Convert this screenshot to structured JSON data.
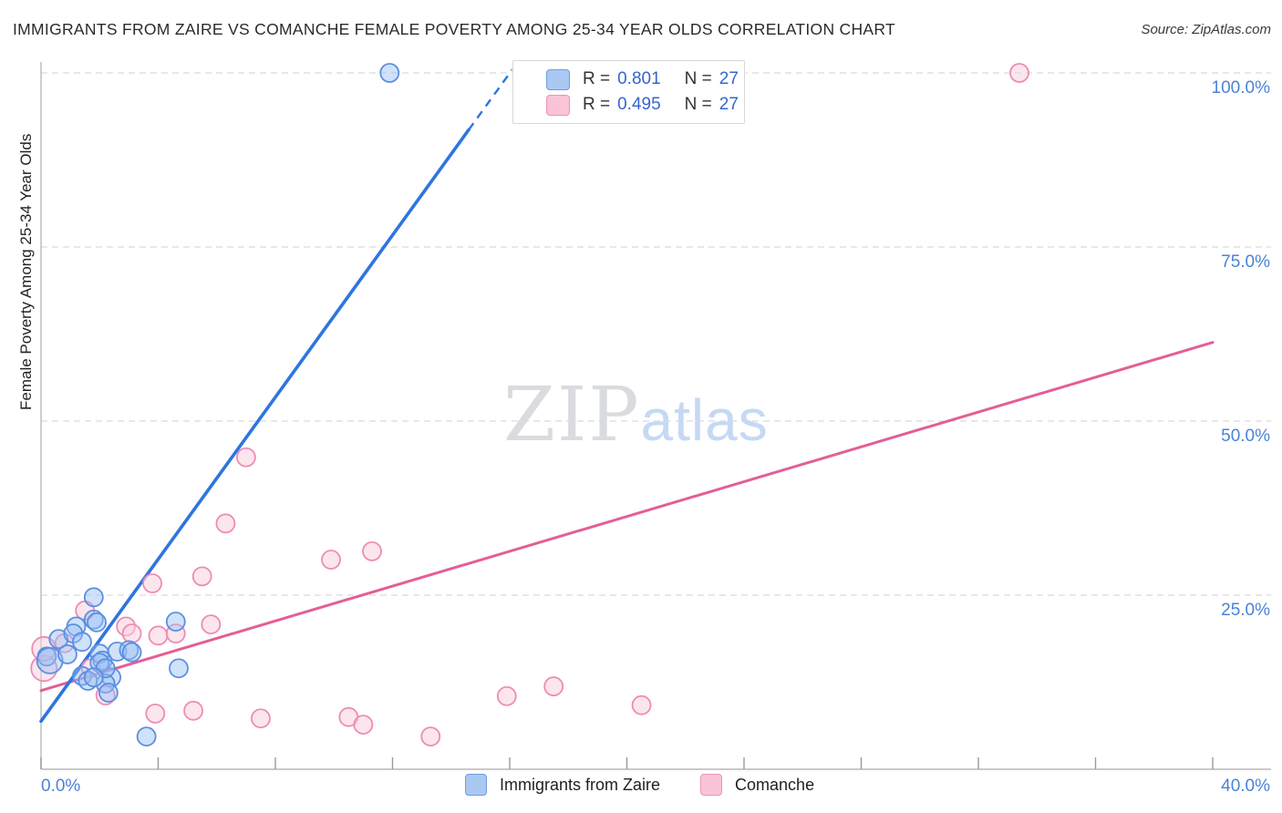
{
  "title": "IMMIGRANTS FROM ZAIRE VS COMANCHE FEMALE POVERTY AMONG 25-34 YEAR OLDS CORRELATION CHART",
  "source": "Source: ZipAtlas.com",
  "watermark": {
    "zip": "ZIP",
    "atlas": "atlas"
  },
  "y_axis_label": "Female Poverty Among 25-34 Year Olds",
  "legend_box": {
    "rows": [
      {
        "series": "zaire",
        "r_label": "R =",
        "r_value": "0.801",
        "n_label": "N =",
        "n_value": "27"
      },
      {
        "series": "comanche",
        "r_label": "R =",
        "r_value": "0.495",
        "n_label": "N =",
        "n_value": "27"
      }
    ]
  },
  "bottom_legend": {
    "zaire_label": "Immigrants from Zaire",
    "comanche_label": "Comanche"
  },
  "axes": {
    "x": {
      "min": 0,
      "max": 40,
      "tick_step_pct": 4,
      "min_label": "0.0%",
      "max_label": "40.0%"
    },
    "y": {
      "min": 0,
      "max": 105,
      "ticks": [
        {
          "value": 100,
          "label": "100.0%"
        },
        {
          "value": 75,
          "label": "75.0%"
        },
        {
          "value": 50,
          "label": "50.0%"
        },
        {
          "value": 25,
          "label": "25.0%"
        }
      ]
    }
  },
  "colors": {
    "blue_stroke": "#5c8fe0",
    "blue_fill": "rgba(150,190,243,0.45)",
    "blue_trend": "#2e75e0",
    "pink_stroke": "#ef8bb4",
    "pink_fill": "rgba(250,205,222,0.5)",
    "pink_trend": "#e45e96",
    "grid": "#d9d9d9",
    "spine": "#b9b9b9",
    "tick": "#9a9a9a"
  },
  "chart_data": {
    "type": "scatter",
    "title": "Immigrants from Zaire vs Comanche Female Poverty Among 25-34 Year Olds",
    "xlabel": "Immigrants from Zaire (%)",
    "ylabel": "Female Poverty Among 25-34 Year Olds",
    "xlim": [
      0,
      40
    ],
    "ylim": [
      0,
      105
    ],
    "grid": "horizontal-dashed",
    "legend_position": "bottom-center",
    "series": [
      {
        "name": "Immigrants from Zaire",
        "R": 0.801,
        "N": 27,
        "points": [
          {
            "x": 11.9,
            "y": 100.0
          },
          {
            "x": 1.8,
            "y": 24.7
          },
          {
            "x": 1.8,
            "y": 21.5
          },
          {
            "x": 1.2,
            "y": 20.5
          },
          {
            "x": 1.9,
            "y": 21.1
          },
          {
            "x": 0.6,
            "y": 18.7
          },
          {
            "x": 1.1,
            "y": 19.5
          },
          {
            "x": 1.4,
            "y": 18.3
          },
          {
            "x": 0.2,
            "y": 16.2
          },
          {
            "x": 0.3,
            "y": 15.6,
            "r": 14
          },
          {
            "x": 0.9,
            "y": 16.5
          },
          {
            "x": 2.0,
            "y": 16.6
          },
          {
            "x": 2.1,
            "y": 15.6
          },
          {
            "x": 2.6,
            "y": 16.9
          },
          {
            "x": 3.0,
            "y": 17.1
          },
          {
            "x": 3.1,
            "y": 16.8
          },
          {
            "x": 1.4,
            "y": 13.4
          },
          {
            "x": 1.6,
            "y": 12.7
          },
          {
            "x": 2.4,
            "y": 13.2
          },
          {
            "x": 2.2,
            "y": 12.3
          },
          {
            "x": 2.3,
            "y": 11.0
          },
          {
            "x": 4.6,
            "y": 21.2
          },
          {
            "x": 4.7,
            "y": 14.5
          },
          {
            "x": 2.0,
            "y": 15.3
          },
          {
            "x": 2.2,
            "y": 14.5
          },
          {
            "x": 3.6,
            "y": 4.7
          },
          {
            "x": 1.8,
            "y": 13.2
          }
        ],
        "trend": {
          "x1": 0,
          "y1": 6.9,
          "x2": 16.35,
          "y2": 102.0,
          "dash_from_x": 14.6
        }
      },
      {
        "name": "Comanche",
        "R": 0.495,
        "N": 27,
        "points": [
          {
            "x": 33.4,
            "y": 100.0
          },
          {
            "x": 7.0,
            "y": 44.8
          },
          {
            "x": 6.3,
            "y": 35.3
          },
          {
            "x": 9.9,
            "y": 30.1
          },
          {
            "x": 11.3,
            "y": 31.3
          },
          {
            "x": 5.5,
            "y": 27.7
          },
          {
            "x": 3.8,
            "y": 26.7
          },
          {
            "x": 1.5,
            "y": 22.8
          },
          {
            "x": 2.9,
            "y": 20.5
          },
          {
            "x": 3.1,
            "y": 19.5
          },
          {
            "x": 4.0,
            "y": 19.2
          },
          {
            "x": 4.6,
            "y": 19.5
          },
          {
            "x": 5.8,
            "y": 20.8
          },
          {
            "x": 0.8,
            "y": 18.1
          },
          {
            "x": 0.1,
            "y": 14.5,
            "r": 14
          },
          {
            "x": 1.7,
            "y": 14.5
          },
          {
            "x": 2.2,
            "y": 10.6
          },
          {
            "x": 3.9,
            "y": 8.0
          },
          {
            "x": 5.2,
            "y": 8.4
          },
          {
            "x": 7.5,
            "y": 7.3
          },
          {
            "x": 10.5,
            "y": 7.5
          },
          {
            "x": 11.0,
            "y": 6.4
          },
          {
            "x": 13.3,
            "y": 4.7
          },
          {
            "x": 15.9,
            "y": 10.5
          },
          {
            "x": 17.5,
            "y": 11.9
          },
          {
            "x": 20.5,
            "y": 9.2
          },
          {
            "x": 0.1,
            "y": 17.3,
            "r": 13
          }
        ],
        "trend": {
          "x1": 0,
          "y1": 11.3,
          "x2": 40,
          "y2": 61.3
        }
      }
    ]
  }
}
